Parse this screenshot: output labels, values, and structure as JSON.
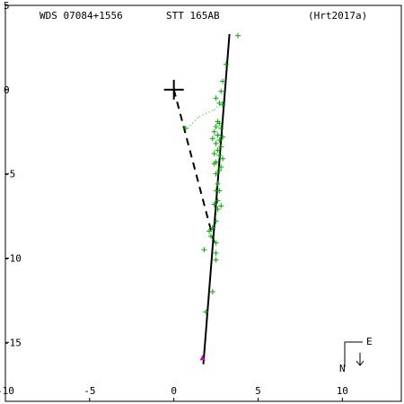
{
  "header": {
    "left": "WDS 07084+1556",
    "center": "STT 165AB",
    "right": "(Hrt2017a)"
  },
  "compass": {
    "east": "E",
    "north": "N"
  },
  "colors": {
    "observation": "#00aa00",
    "marker": "#cc00cc",
    "axis": "#000000"
  },
  "chart_data": {
    "type": "scatter",
    "title": "STT 165AB",
    "xlim": [
      -10,
      13.5
    ],
    "ylim": [
      -18.5,
      5
    ],
    "x_ticks": [
      -10,
      -5,
      0,
      5,
      10
    ],
    "y_ticks": [
      5,
      0,
      -5,
      -10,
      -15
    ],
    "primary": [
      0,
      0
    ],
    "orbit_line": [
      [
        3.3,
        3.3
      ],
      [
        1.75,
        -16.3
      ]
    ],
    "node_line": [
      [
        0,
        0
      ],
      [
        2.4,
        -9.1
      ]
    ],
    "dotted_segments": [
      [
        [
          0.8,
          -2.3
        ],
        [
          1.5,
          -1.6
        ]
      ],
      [
        [
          1.5,
          -1.6
        ],
        [
          2.4,
          -1.2
        ]
      ],
      [
        [
          2.4,
          -1.2
        ],
        [
          3.0,
          -0.6
        ]
      ]
    ],
    "last_observation": [
      1.7,
      -15.9
    ],
    "observations": [
      [
        3.8,
        3.2
      ],
      [
        3.1,
        1.5
      ],
      [
        2.9,
        0.5
      ],
      [
        2.8,
        -0.1
      ],
      [
        2.5,
        -0.5
      ],
      [
        2.7,
        -0.8
      ],
      [
        2.9,
        -0.9
      ],
      [
        2.6,
        -1.9
      ],
      [
        2.7,
        -2.0
      ],
      [
        2.5,
        -2.2
      ],
      [
        2.8,
        -2.3
      ],
      [
        2.4,
        -2.5
      ],
      [
        2.6,
        -2.7
      ],
      [
        2.9,
        -2.8
      ],
      [
        2.3,
        -2.9
      ],
      [
        2.7,
        -3.0
      ],
      [
        2.5,
        -3.2
      ],
      [
        2.8,
        -3.4
      ],
      [
        2.6,
        -3.6
      ],
      [
        2.4,
        -3.8
      ],
      [
        2.7,
        -3.9
      ],
      [
        2.9,
        -4.1
      ],
      [
        2.5,
        -4.3
      ],
      [
        2.4,
        -4.4
      ],
      [
        2.8,
        -4.6
      ],
      [
        2.7,
        -4.8
      ],
      [
        2.5,
        -5.0
      ],
      [
        2.6,
        -5.6
      ],
      [
        2.5,
        -6.0
      ],
      [
        2.7,
        -6.0
      ],
      [
        2.6,
        -6.6
      ],
      [
        2.4,
        -6.8
      ],
      [
        2.8,
        -6.9
      ],
      [
        2.6,
        -7.1
      ],
      [
        2.5,
        -7.8
      ],
      [
        2.3,
        -8.2
      ],
      [
        2.1,
        -8.4
      ],
      [
        2.2,
        -8.7
      ],
      [
        2.5,
        -9.1
      ],
      [
        1.8,
        -9.5
      ],
      [
        2.5,
        -9.7
      ],
      [
        2.5,
        -10.1
      ],
      [
        2.3,
        -12.0
      ],
      [
        1.9,
        -13.2
      ],
      [
        0.7,
        -2.3
      ]
    ]
  }
}
